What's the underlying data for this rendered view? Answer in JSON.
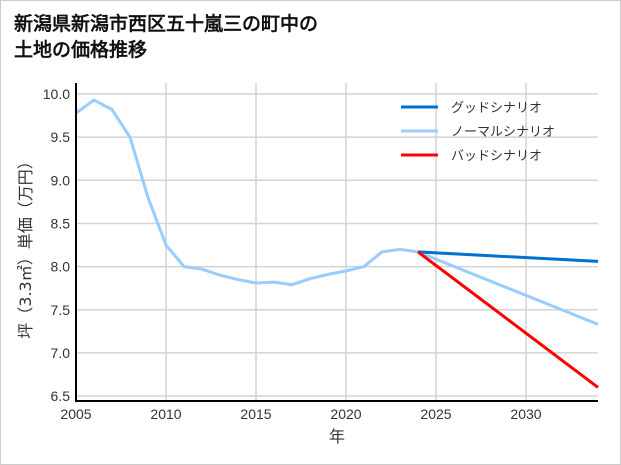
{
  "chart_data": {
    "type": "line",
    "title_line1": "新潟県新潟市西区五十嵐三の町中の",
    "title_line2": "土地の価格推移",
    "xlabel": "年",
    "ylabel": "坪（3.3㎡）単価（万円）",
    "xlim": [
      2005,
      2034
    ],
    "ylim": [
      6.45,
      10.1
    ],
    "xticks": [
      2005,
      2010,
      2015,
      2020,
      2025,
      2030
    ],
    "yticks": [
      6.5,
      7.0,
      7.5,
      8.0,
      8.5,
      9.0,
      9.5,
      10.0
    ],
    "grid": true,
    "legend_position": "top-right",
    "series": [
      {
        "name": "グッドシナリオ",
        "color": "#0072cf",
        "x": [
          2024,
          2034
        ],
        "y": [
          8.17,
          8.06
        ]
      },
      {
        "name": "ノーマルシナリオ",
        "color": "#99ccff",
        "x": [
          2005,
          2006,
          2007,
          2008,
          2009,
          2010,
          2011,
          2012,
          2013,
          2014,
          2015,
          2016,
          2017,
          2018,
          2019,
          2020,
          2021,
          2022,
          2023,
          2024,
          2034
        ],
        "y": [
          9.78,
          9.93,
          9.82,
          9.5,
          8.8,
          8.25,
          8.0,
          7.97,
          7.9,
          7.85,
          7.81,
          7.82,
          7.79,
          7.86,
          7.91,
          7.95,
          8.0,
          8.17,
          8.2,
          8.17,
          7.33
        ]
      },
      {
        "name": "バッドシナリオ",
        "color": "#ff0000",
        "x": [
          2024,
          2034
        ],
        "y": [
          8.17,
          6.6
        ]
      }
    ]
  }
}
